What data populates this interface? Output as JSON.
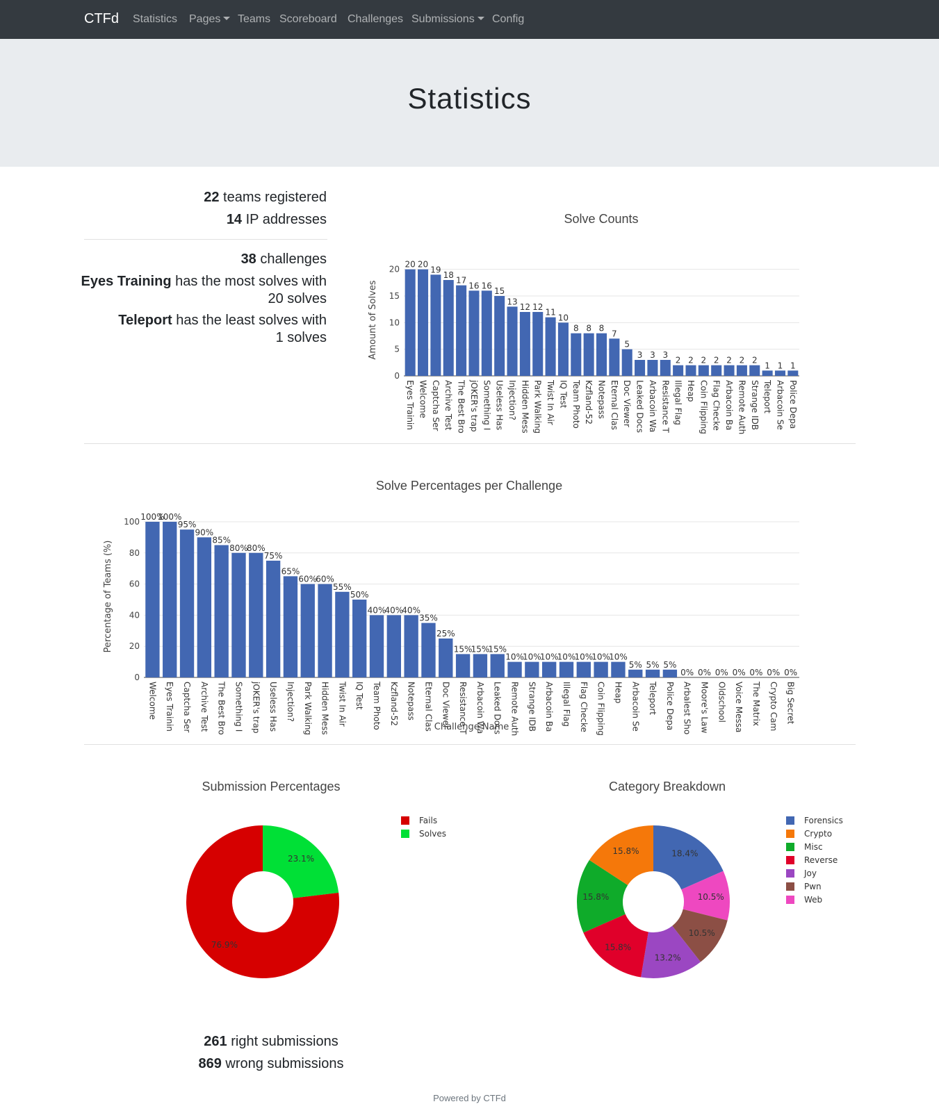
{
  "navbar": {
    "brand": "CTFd",
    "items": [
      {
        "label": "Statistics",
        "dropdown": false
      },
      {
        "label": "Pages",
        "dropdown": true
      },
      {
        "label": "Teams",
        "dropdown": false
      },
      {
        "label": "Scoreboard",
        "dropdown": false
      },
      {
        "label": "Challenges",
        "dropdown": false
      },
      {
        "label": "Submissions",
        "dropdown": true
      },
      {
        "label": "Config",
        "dropdown": false
      }
    ]
  },
  "page": {
    "title": "Statistics"
  },
  "stats": {
    "teams_count": "22",
    "teams_text": " teams registered",
    "ip_count": "14",
    "ip_text": " IP addresses",
    "challenges_count": "38",
    "challenges_text": " challenges",
    "most_name": "Eyes Training",
    "most_text1": " has the most solves with",
    "most_text2": "20 solves",
    "least_name": "Teleport",
    "least_text1": " has the least solves with",
    "least_text2": "1 solves",
    "right_count": "261",
    "right_text": " right submissions",
    "wrong_count": "869",
    "wrong_text": " wrong submissions"
  },
  "footer": {
    "text": "Powered by CTFd"
  },
  "colors": {
    "bar": "#4267b2",
    "fails": "#d60000",
    "solves": "#00e036"
  },
  "chart_data": [
    {
      "type": "bar",
      "title": "Solve Counts",
      "ylabel": "Amount of Solves",
      "ylim": [
        0,
        21
      ],
      "yticks": [
        0,
        5,
        10,
        15,
        20
      ],
      "categories": [
        "Eyes Trainin",
        "Welcome",
        "Captcha Ser",
        "Archive Test",
        "The Best Bro",
        "jOKER's trap",
        "Something I",
        "Useless Has",
        "Injection?",
        "Hidden Mess",
        "Park Walking",
        "Twist In Air",
        "IQ Test",
        "Team Photo",
        "Kzfland-52",
        "Notepass",
        "Eternal Clas",
        "Doc Viewer",
        "Leaked Docs",
        "Arbacoin Wa",
        "Resistance T",
        "Illegal Flag",
        "Heap",
        "Coin Flipping",
        "Flag Checke",
        "Arbacoin Ba",
        "Remote Auth",
        "Strange IDB",
        "Teleport",
        "Arbacoin Se",
        "Police Depa"
      ],
      "values": [
        20,
        20,
        19,
        18,
        17,
        16,
        16,
        15,
        13,
        12,
        12,
        11,
        10,
        8,
        8,
        8,
        7,
        5,
        3,
        3,
        3,
        2,
        2,
        2,
        2,
        2,
        2,
        2,
        1,
        1,
        1
      ]
    },
    {
      "type": "bar",
      "title": "Solve Percentages per Challenge",
      "xlabel": "Challenge Name",
      "ylabel": "Percentage of Teams (%)",
      "ylim": [
        0,
        104
      ],
      "yticks": [
        0,
        20,
        40,
        60,
        80,
        100
      ],
      "categories": [
        "Welcome",
        "Eyes Trainin",
        "Captcha Ser",
        "Archive Test",
        "The Best Bro",
        "Something I",
        "jOKER's trap",
        "Useless Has",
        "Injection?",
        "Park Walking",
        "Hidden Mess",
        "Twist In Air",
        "IQ Test",
        "Team Photo",
        "Kzfland-52",
        "Notepass",
        "Eternal Clas",
        "Doc Viewer",
        "Resistance T",
        "Arbacoin Wa",
        "Leaked Docs",
        "Remote Auth",
        "Strange IDB",
        "Arbacoin Ba",
        "Illegal Flag",
        "Flag Checke",
        "Coin Flipping",
        "Heap",
        "Arbacoin Se",
        "Teleport",
        "Police Depa",
        "Arbalest Sho",
        "Moore's Law",
        "Oldschool",
        "Voice Messa",
        "The Matrix",
        "Crypto Cam",
        "Big Secret"
      ],
      "values": [
        100,
        100,
        95,
        90,
        85,
        80,
        80,
        75,
        65,
        60,
        60,
        55,
        50,
        40,
        40,
        40,
        35,
        25,
        15,
        15,
        15,
        10,
        10,
        10,
        10,
        10,
        10,
        10,
        5,
        5,
        5,
        0,
        0,
        0,
        0,
        0,
        0,
        0
      ]
    },
    {
      "type": "pie",
      "title": "Submission Percentages",
      "labels": [
        "Fails",
        "Solves"
      ],
      "values": [
        76.9,
        23.1
      ],
      "colors": [
        "#d60000",
        "#00e036"
      ]
    },
    {
      "type": "pie",
      "title": "Category Breakdown",
      "labels": [
        "Forensics",
        "Crypto",
        "Misc",
        "Reverse",
        "Joy",
        "Pwn",
        "Web"
      ],
      "legend_colors": [
        "#4267b2",
        "#f5780a",
        "#0fab2a",
        "#e0002a",
        "#9b47c2",
        "#8c4f45",
        "#ee48c0"
      ],
      "slices": [
        {
          "value": 18.4,
          "color": "#4267b2"
        },
        {
          "value": 10.5,
          "color": "#ee48c0"
        },
        {
          "value": 10.5,
          "color": "#8c4f45"
        },
        {
          "value": 13.2,
          "color": "#9b47c2"
        },
        {
          "value": 15.8,
          "color": "#e0002a"
        },
        {
          "value": 15.8,
          "color": "#0fab2a"
        },
        {
          "value": 15.8,
          "color": "#f5780a"
        }
      ]
    }
  ]
}
